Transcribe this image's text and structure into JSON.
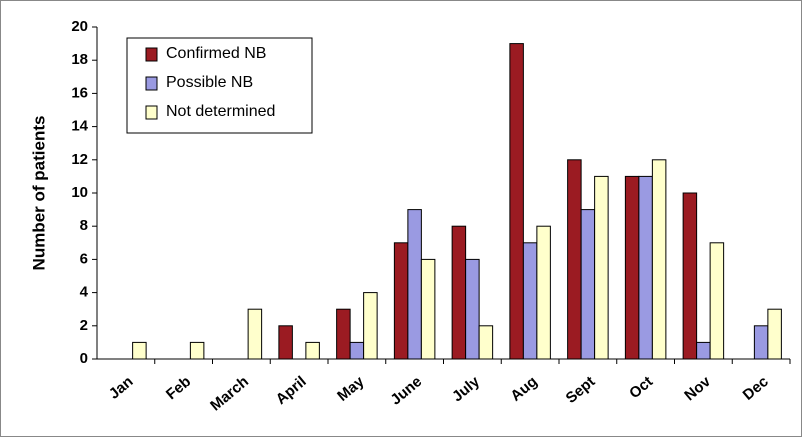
{
  "chart_data": {
    "type": "bar",
    "y_label": "Number of patients",
    "categories": [
      "Jan",
      "Feb",
      "March",
      "April",
      "May",
      "June",
      "July",
      "Aug",
      "Sept",
      "Oct",
      "Nov",
      "Dec"
    ],
    "series": [
      {
        "name": "Confirmed NB",
        "color": "#9b1b22",
        "values": [
          0,
          0,
          0,
          2,
          3,
          7,
          8,
          19,
          12,
          11,
          10,
          0
        ]
      },
      {
        "name": "Possible NB",
        "color": "#9a9ae2",
        "values": [
          0,
          0,
          0,
          0,
          1,
          9,
          6,
          7,
          9,
          11,
          1,
          2
        ]
      },
      {
        "name": "Not determined",
        "color": "#ffffcc",
        "values": [
          1,
          1,
          3,
          1,
          4,
          6,
          2,
          8,
          11,
          12,
          7,
          3
        ]
      }
    ],
    "ylim": [
      0,
      20
    ],
    "yticks": [
      0,
      2,
      4,
      6,
      8,
      10,
      12,
      14,
      16,
      18,
      20
    ],
    "legend": "upper left"
  }
}
